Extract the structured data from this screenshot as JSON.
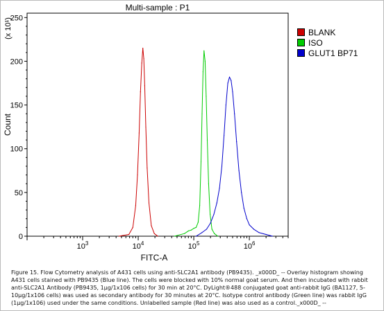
{
  "chart_data": {
    "type": "line",
    "title": "Multi-sample : P1",
    "xlabel": "FITC-A",
    "ylabel": "Count",
    "y_multiplier_label": "(x 10¹)",
    "x_scale": "log",
    "xlim": [
      100,
      5000000
    ],
    "ylim": [
      0,
      255
    ],
    "x_ticks": [
      {
        "value": 1000,
        "base": "10",
        "exp": "3"
      },
      {
        "value": 10000,
        "base": "10",
        "exp": "4"
      },
      {
        "value": 100000,
        "base": "10",
        "exp": "5"
      },
      {
        "value": 1000000,
        "base": "10",
        "exp": "6"
      }
    ],
    "y_ticks": [
      0,
      50,
      100,
      150,
      200,
      250
    ],
    "legend_position": "right",
    "series": [
      {
        "name": "BLANK",
        "color": "#cc0000",
        "x": [
          4500,
          6800,
          8000,
          9000,
          9700,
          10400,
          11000,
          11600,
          12100,
          12600,
          13100,
          13700,
          14500,
          15600,
          17200,
          19500,
          22500
        ],
        "y": [
          0,
          2,
          10,
          35,
          70,
          118,
          165,
          198,
          215,
          203,
          172,
          125,
          78,
          38,
          12,
          3,
          0
        ]
      },
      {
        "name": "ISO",
        "color": "#00cc00",
        "x": [
          45000,
          68000,
          80000,
          90000,
          100000,
          110000,
          120000,
          128000,
          135000,
          141000,
          147000,
          153000,
          160000,
          167000,
          175000,
          185000,
          197000,
          212000,
          235000,
          270000
        ],
        "y": [
          0,
          3,
          6,
          7,
          9,
          10,
          16,
          35,
          85,
          140,
          188,
          212,
          200,
          160,
          110,
          60,
          25,
          8,
          3,
          0
        ]
      },
      {
        "name": "GLUT1 BP71",
        "color": "#0000cc",
        "x": [
          110000,
          140000,
          170000,
          200000,
          230000,
          260000,
          290000,
          320000,
          350000,
          380000,
          410000,
          440000,
          470000,
          500000,
          540000,
          590000,
          650000,
          720000,
          800000,
          900000,
          1000000,
          1200000,
          1500000,
          2000000,
          2600000
        ],
        "y": [
          0,
          4,
          8,
          15,
          25,
          38,
          55,
          80,
          115,
          150,
          175,
          182,
          178,
          165,
          140,
          108,
          75,
          50,
          32,
          20,
          13,
          8,
          4,
          2,
          0
        ]
      }
    ]
  },
  "caption": "Figure 15. Flow Cytometry analysis of A431 cells using anti-SLC2A1 antibody (PB9435). _x000D_ -- Overlay histogram showing A431 cells stained with PB9435 (Blue line). The cells were blocked with 10% normal goat serum. And then incubated with rabbit anti-SLC2A1 Antibody (PB9435, 1µg/1x106 cells) for 30 min at 20°C. DyLight®488 conjugated goat anti-rabbit IgG (BA1127, 5-10µg/1x106 cells) was used as secondary antibody for 30 minutes at 20°C. Isotype control antibody (Green line) was rabbit IgG (1µg/1x106) used under the same conditions. Unlabelled sample (Red line) was also used as a control._x000D_ --"
}
